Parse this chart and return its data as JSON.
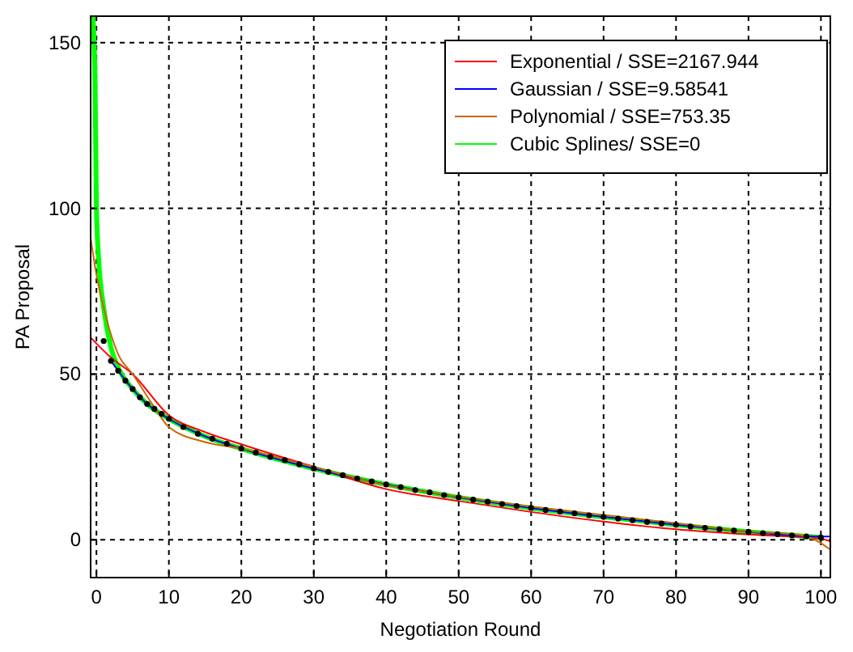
{
  "chart_data": {
    "type": "line",
    "xlabel": "Negotiation Round",
    "ylabel": "PA Proposal",
    "xlim": [
      -0.8,
      101.3
    ],
    "ylim": [
      -11.4,
      158
    ],
    "xticks": [
      0,
      10,
      20,
      30,
      40,
      50,
      60,
      70,
      80,
      90,
      100
    ],
    "yticks": [
      0,
      50,
      100,
      150
    ],
    "grid": true,
    "legend": "top right",
    "line_style": "solid",
    "marker": "none",
    "series": [
      {
        "name": "Exponential / SSE=2167.944",
        "color": "#ff0000",
        "x": [
          -0.8,
          2,
          5,
          10,
          15,
          20,
          30,
          40,
          50,
          60,
          70,
          80,
          90,
          100,
          101.3
        ],
        "values": [
          61,
          55,
          50,
          37.6,
          32.5,
          28.8,
          22,
          15.3,
          11.7,
          8.4,
          5.5,
          3.2,
          1.6,
          0.3,
          -0.5
        ]
      },
      {
        "name": "Gaussian / SSE=9.58541",
        "color": "#0000ff",
        "x": [
          2,
          3,
          5,
          7,
          10,
          15,
          20,
          30,
          40,
          50,
          60,
          70,
          80,
          90,
          100,
          101.3
        ],
        "values": [
          54,
          51,
          45.5,
          41,
          36.5,
          31.2,
          27.5,
          21.5,
          16.7,
          12.8,
          9.6,
          6.9,
          4.5,
          2.4,
          1,
          1
        ]
      },
      {
        "name": "Polynomial / SSE=753.35",
        "color": "#cc6600",
        "x": [
          -0.8,
          0,
          1,
          2,
          3,
          5,
          8,
          10,
          15,
          20,
          30,
          40,
          50,
          60,
          70,
          80,
          90,
          97,
          100,
          101.3
        ],
        "values": [
          91,
          80,
          70,
          62,
          56,
          50,
          40,
          34,
          29.5,
          27.5,
          22,
          16.5,
          13,
          10,
          7.5,
          5,
          2.5,
          1.5,
          -1,
          -3
        ]
      },
      {
        "name": "Cubic Splines/ SSE=0",
        "color": "#00ff00",
        "x": [
          -0.5,
          -0.2,
          0,
          0.3,
          1,
          2,
          3,
          5,
          7,
          10,
          15,
          20,
          30,
          40,
          50,
          60,
          70,
          80,
          90,
          100
        ],
        "values": [
          158,
          140,
          100,
          85,
          70,
          58,
          52,
          45.5,
          41,
          36.5,
          31.2,
          27.5,
          21.5,
          16.7,
          12.8,
          9.6,
          6.9,
          4.5,
          2.4,
          0.7
        ]
      },
      {
        "type": "scatter",
        "color": "#000000",
        "marker": "circle",
        "x": [
          1,
          2,
          3,
          4,
          5,
          6,
          7,
          8,
          9,
          10,
          12,
          14,
          16,
          18,
          20,
          22,
          24,
          26,
          28,
          30,
          32,
          34,
          36,
          38,
          40,
          42,
          44,
          46,
          48,
          50,
          52,
          54,
          56,
          58,
          60,
          62,
          64,
          66,
          68,
          70,
          72,
          74,
          76,
          78,
          80,
          82,
          84,
          86,
          88,
          90,
          92,
          94,
          96,
          98,
          100
        ],
        "values": [
          60,
          54,
          51,
          48,
          45.5,
          43,
          41,
          39.5,
          38,
          36.5,
          34,
          32,
          30.5,
          29,
          27.5,
          26.3,
          25,
          24,
          22.8,
          21.5,
          20.5,
          19.5,
          18.5,
          17.6,
          16.7,
          15.9,
          15,
          14.3,
          13.5,
          12.8,
          12.1,
          11.5,
          10.8,
          10.2,
          9.6,
          9,
          8.5,
          8,
          7.4,
          6.9,
          6.4,
          5.9,
          5.4,
          4.9,
          4.5,
          4,
          3.6,
          3.2,
          2.8,
          2.4,
          2,
          1.7,
          1.3,
          1,
          0.7
        ]
      }
    ]
  }
}
